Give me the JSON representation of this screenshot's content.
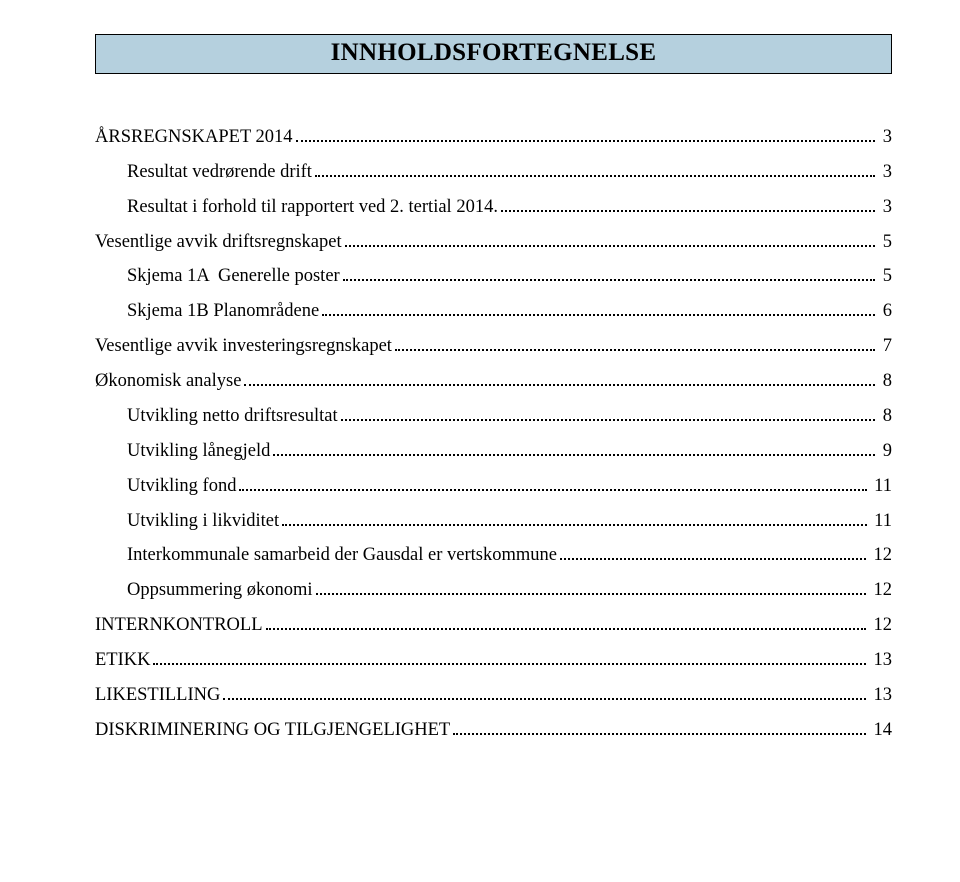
{
  "colors": {
    "title_bg": "#b5d0de",
    "title_border": "#000000",
    "text": "#000000",
    "page_bg": "#ffffff",
    "dots": "#000000"
  },
  "typography": {
    "title_fontsize": 25,
    "title_weight": "bold",
    "body_fontsize": 18.5,
    "font_family": "Times New Roman"
  },
  "title": "INNHOLDSFORTEGNELSE",
  "toc": [
    {
      "label": "ÅRSREGNSKAPET 2014",
      "page": "3",
      "indent": 0
    },
    {
      "label": "Resultat vedrørende drift",
      "page": "3",
      "indent": 1
    },
    {
      "label": "Resultat i forhold til rapportert ved 2. tertial 2014.",
      "page": "3",
      "indent": 1
    },
    {
      "label": "Vesentlige avvik driftsregnskapet",
      "page": "5",
      "indent": 0
    },
    {
      "label": "Skjema 1A  Generelle poster",
      "page": "5",
      "indent": 1
    },
    {
      "label": "Skjema 1B Planområdene",
      "page": "6",
      "indent": 1
    },
    {
      "label": "Vesentlige avvik investeringsregnskapet",
      "page": "7",
      "indent": 0
    },
    {
      "label": "Økonomisk analyse",
      "page": "8",
      "indent": 0
    },
    {
      "label": "Utvikling netto driftsresultat",
      "page": "8",
      "indent": 1
    },
    {
      "label": "Utvikling lånegjeld",
      "page": "9",
      "indent": 1
    },
    {
      "label": "Utvikling fond",
      "page": "11",
      "indent": 1
    },
    {
      "label": "Utvikling i likviditet",
      "page": "11",
      "indent": 1
    },
    {
      "label": "Interkommunale samarbeid der Gausdal er vertskommune",
      "page": "12",
      "indent": 1
    },
    {
      "label": "Oppsummering økonomi",
      "page": "12",
      "indent": 1
    },
    {
      "label": "INTERNKONTROLL",
      "page": "12",
      "indent": 0
    },
    {
      "label": "ETIKK",
      "page": "13",
      "indent": 0
    },
    {
      "label": "LIKESTILLING",
      "page": "13",
      "indent": 0
    },
    {
      "label": "DISKRIMINERING OG TILGJENGELIGHET",
      "page": "14",
      "indent": 0
    }
  ]
}
